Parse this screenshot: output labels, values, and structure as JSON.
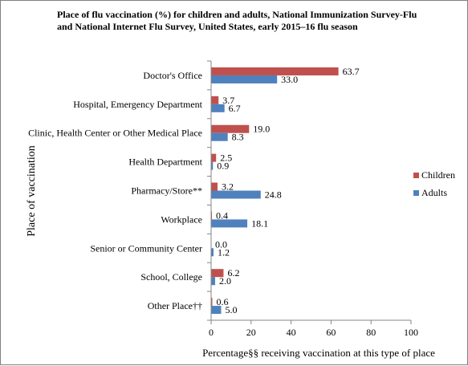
{
  "chart_data": {
    "type": "bar",
    "orientation": "horizontal",
    "title": "Place of flu vaccination (%) for children and adults, National Immunization Survey-Flu and National Internet Flu Survey, United States, early 2015–16 flu season",
    "xlabel": "Percentage§§ receiving vaccination at this type of place",
    "ylabel": "Place of vaccination",
    "xlim": [
      0,
      100
    ],
    "xticks": [
      0,
      20,
      40,
      60,
      80,
      100
    ],
    "categories": [
      "Doctor's Office",
      "Hospital, Emergency Department",
      "Clinic, Health Center or Other Medical Place",
      "Health Department",
      "Pharmacy/Store**",
      "Workplace",
      "Senior or Community Center",
      "School, College",
      "Other Place††"
    ],
    "series": [
      {
        "name": "Children",
        "color": "#c0504d",
        "values": [
          63.7,
          3.7,
          19.0,
          2.5,
          3.2,
          0.4,
          0.0,
          6.2,
          0.6
        ],
        "labels": [
          "63.7",
          "3.7",
          "19.0",
          "2.5",
          "3.2",
          "0.4",
          "0.0",
          "6.2",
          "0.6"
        ]
      },
      {
        "name": "Adults",
        "color": "#4f81bd",
        "values": [
          33.0,
          6.7,
          8.3,
          0.9,
          24.8,
          18.1,
          1.2,
          2.0,
          5.0
        ],
        "labels": [
          "33.0",
          "6.7",
          "8.3",
          "0.9",
          "24.8",
          "18.1",
          "1.2",
          "2.0",
          "5.0"
        ]
      }
    ],
    "grid": false,
    "legend_position": "right"
  }
}
